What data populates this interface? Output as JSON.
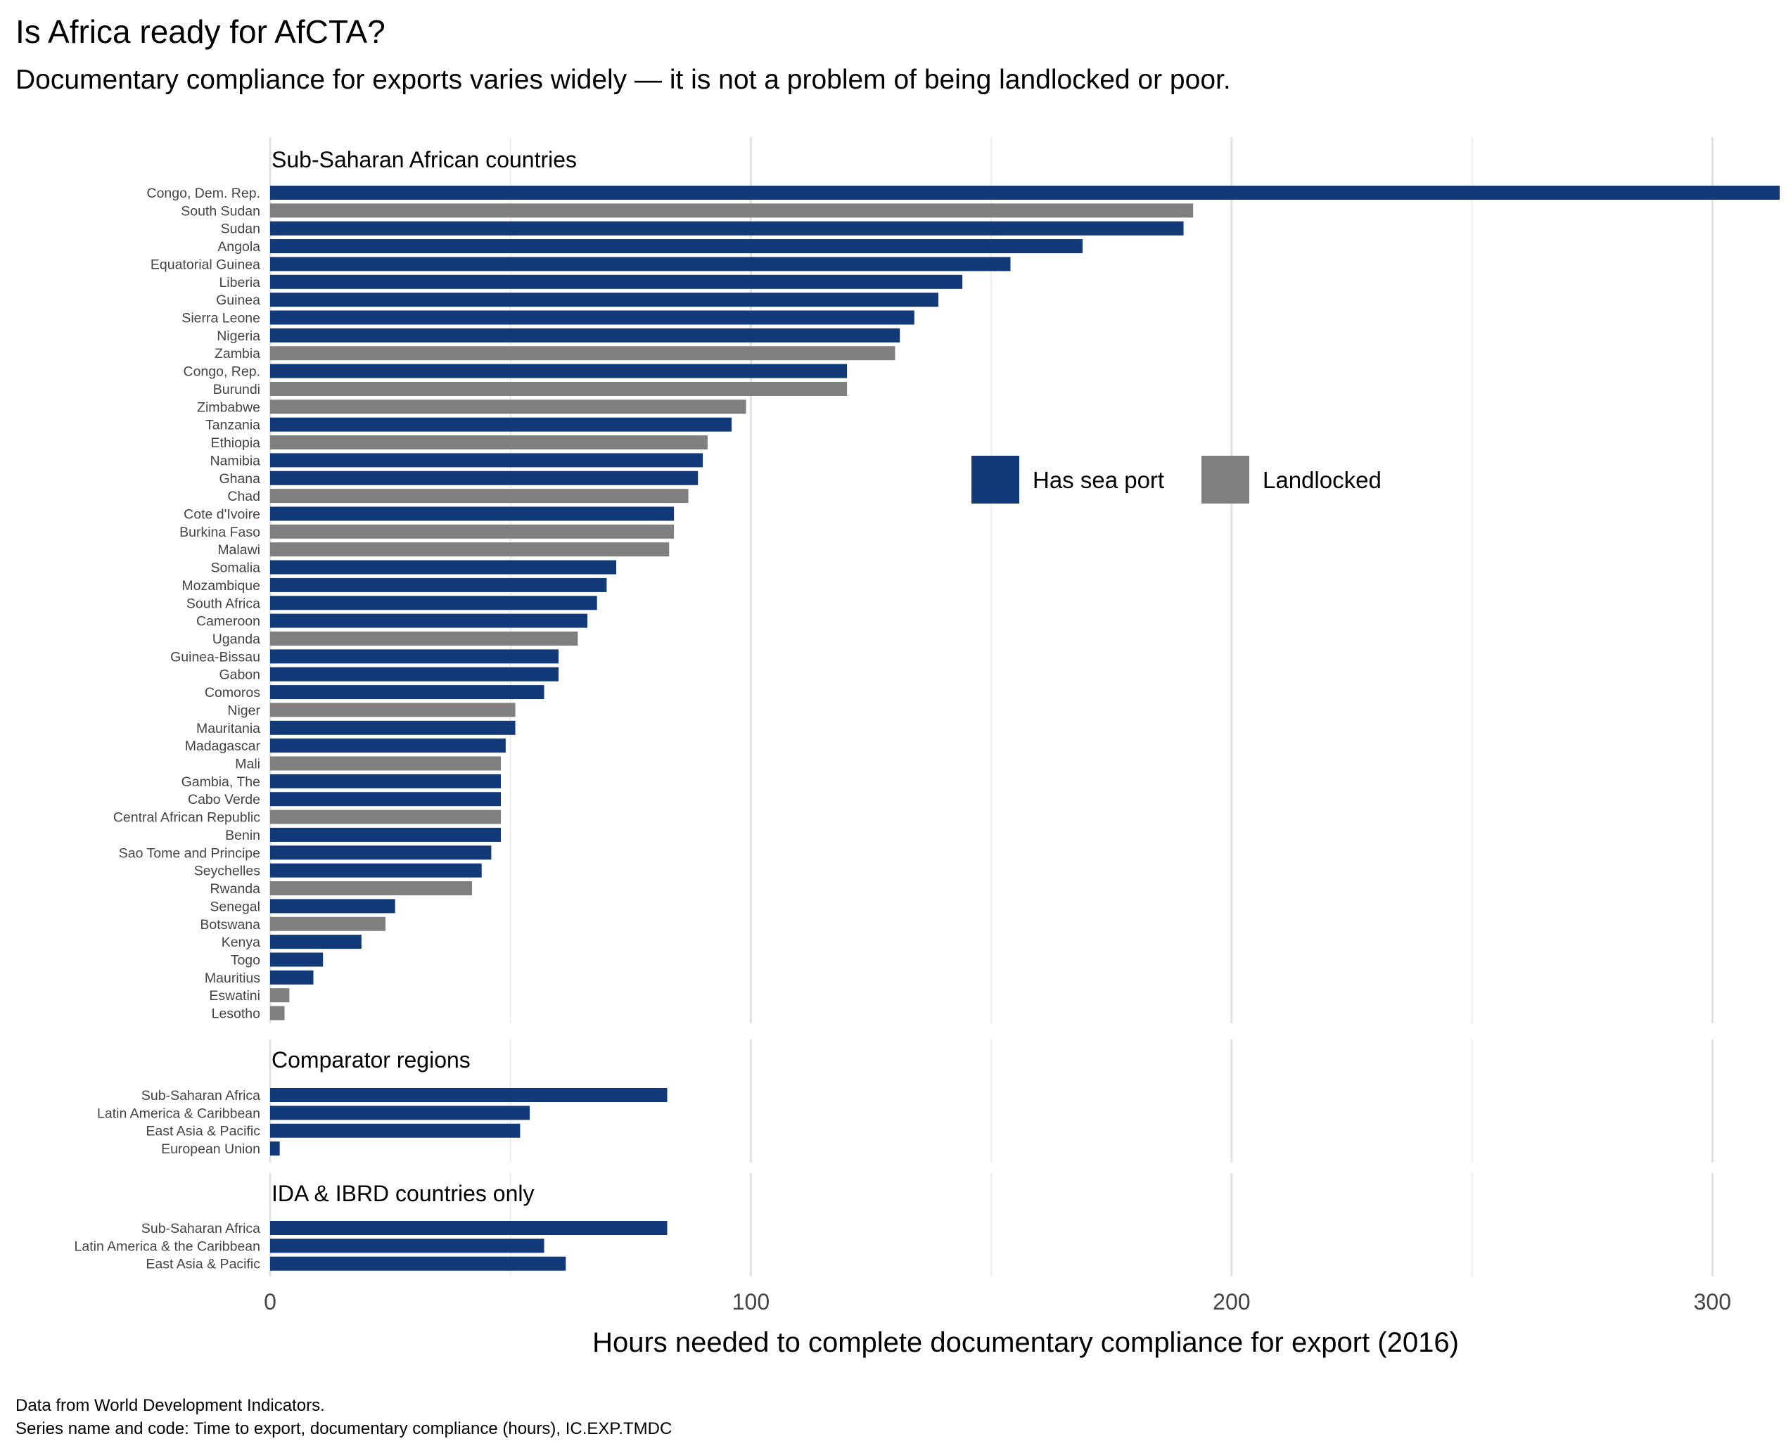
{
  "title": "Is Africa ready for AfCTA?",
  "subtitle": "Documentary compliance for exports varies widely — it is not a problem of being landlocked or poor.",
  "caption": {
    "line1": "Data from World Development Indicators.",
    "line2": "Series name and code: Time to export, documentary compliance (hours), IC.EXP.TMDC"
  },
  "colors": {
    "Has sea port": "#133a78",
    "Landlocked": "#7f7f7f"
  },
  "chart_data": {
    "type": "bar",
    "orientation": "horizontal",
    "xlabel": "Hours needed to complete documentary compliance for export (2016)",
    "xlim": [
      0,
      314
    ],
    "xticks": [
      0,
      100,
      200,
      300
    ],
    "grid": true,
    "legend": {
      "position": "right-inside",
      "entries": [
        "Has sea port",
        "Landlocked"
      ]
    },
    "panels": [
      {
        "title": "Sub-Saharan African countries",
        "bars": [
          {
            "label": "Congo, Dem. Rep.",
            "value": 314,
            "group": "Has sea port"
          },
          {
            "label": "South Sudan",
            "value": 192,
            "group": "Landlocked"
          },
          {
            "label": "Sudan",
            "value": 190,
            "group": "Has sea port"
          },
          {
            "label": "Angola",
            "value": 169,
            "group": "Has sea port"
          },
          {
            "label": "Equatorial Guinea",
            "value": 154,
            "group": "Has sea port"
          },
          {
            "label": "Liberia",
            "value": 144,
            "group": "Has sea port"
          },
          {
            "label": "Guinea",
            "value": 139,
            "group": "Has sea port"
          },
          {
            "label": "Sierra Leone",
            "value": 134,
            "group": "Has sea port"
          },
          {
            "label": "Nigeria",
            "value": 131,
            "group": "Has sea port"
          },
          {
            "label": "Zambia",
            "value": 130,
            "group": "Landlocked"
          },
          {
            "label": "Congo, Rep.",
            "value": 120,
            "group": "Has sea port"
          },
          {
            "label": "Burundi",
            "value": 120,
            "group": "Landlocked"
          },
          {
            "label": "Zimbabwe",
            "value": 99,
            "group": "Landlocked"
          },
          {
            "label": "Tanzania",
            "value": 96,
            "group": "Has sea port"
          },
          {
            "label": "Ethiopia",
            "value": 91,
            "group": "Landlocked"
          },
          {
            "label": "Namibia",
            "value": 90,
            "group": "Has sea port"
          },
          {
            "label": "Ghana",
            "value": 89,
            "group": "Has sea port"
          },
          {
            "label": "Chad",
            "value": 87,
            "group": "Landlocked"
          },
          {
            "label": "Cote d'Ivoire",
            "value": 84,
            "group": "Has sea port"
          },
          {
            "label": "Burkina Faso",
            "value": 84,
            "group": "Landlocked"
          },
          {
            "label": "Malawi",
            "value": 83,
            "group": "Landlocked"
          },
          {
            "label": "Somalia",
            "value": 72,
            "group": "Has sea port"
          },
          {
            "label": "Mozambique",
            "value": 70,
            "group": "Has sea port"
          },
          {
            "label": "South Africa",
            "value": 68,
            "group": "Has sea port"
          },
          {
            "label": "Cameroon",
            "value": 66,
            "group": "Has sea port"
          },
          {
            "label": "Uganda",
            "value": 64,
            "group": "Landlocked"
          },
          {
            "label": "Guinea-Bissau",
            "value": 60,
            "group": "Has sea port"
          },
          {
            "label": "Gabon",
            "value": 60,
            "group": "Has sea port"
          },
          {
            "label": "Comoros",
            "value": 57,
            "group": "Has sea port"
          },
          {
            "label": "Niger",
            "value": 51,
            "group": "Landlocked"
          },
          {
            "label": "Mauritania",
            "value": 51,
            "group": "Has sea port"
          },
          {
            "label": "Madagascar",
            "value": 49,
            "group": "Has sea port"
          },
          {
            "label": "Mali",
            "value": 48,
            "group": "Landlocked"
          },
          {
            "label": "Gambia, The",
            "value": 48,
            "group": "Has sea port"
          },
          {
            "label": "Cabo Verde",
            "value": 48,
            "group": "Has sea port"
          },
          {
            "label": "Central African Republic",
            "value": 48,
            "group": "Landlocked"
          },
          {
            "label": "Benin",
            "value": 48,
            "group": "Has sea port"
          },
          {
            "label": "Sao Tome and Principe",
            "value": 46,
            "group": "Has sea port"
          },
          {
            "label": "Seychelles",
            "value": 44,
            "group": "Has sea port"
          },
          {
            "label": "Rwanda",
            "value": 42,
            "group": "Landlocked"
          },
          {
            "label": "Senegal",
            "value": 26,
            "group": "Has sea port"
          },
          {
            "label": "Botswana",
            "value": 24,
            "group": "Landlocked"
          },
          {
            "label": "Kenya",
            "value": 19,
            "group": "Has sea port"
          },
          {
            "label": "Togo",
            "value": 11,
            "group": "Has sea port"
          },
          {
            "label": "Mauritius",
            "value": 9,
            "group": "Has sea port"
          },
          {
            "label": "Eswatini",
            "value": 4,
            "group": "Landlocked"
          },
          {
            "label": "Lesotho",
            "value": 3,
            "group": "Landlocked"
          }
        ]
      },
      {
        "title": "Comparator regions",
        "bars": [
          {
            "label": "Sub-Saharan Africa",
            "value": 82.6,
            "group": "Has sea port"
          },
          {
            "label": "Latin America & Caribbean",
            "value": 54,
            "group": "Has sea port"
          },
          {
            "label": "East Asia & Pacific",
            "value": 52,
            "group": "Has sea port"
          },
          {
            "label": "European Union",
            "value": 2,
            "group": "Has sea port"
          }
        ]
      },
      {
        "title": "IDA & IBRD countries only",
        "bars": [
          {
            "label": "Sub-Saharan Africa",
            "value": 82.6,
            "group": "Has sea port"
          },
          {
            "label": "Latin America & the Caribbean",
            "value": 57,
            "group": "Has sea port"
          },
          {
            "label": "East Asia & Pacific",
            "value": 61.5,
            "group": "Has sea port"
          }
        ]
      }
    ]
  }
}
